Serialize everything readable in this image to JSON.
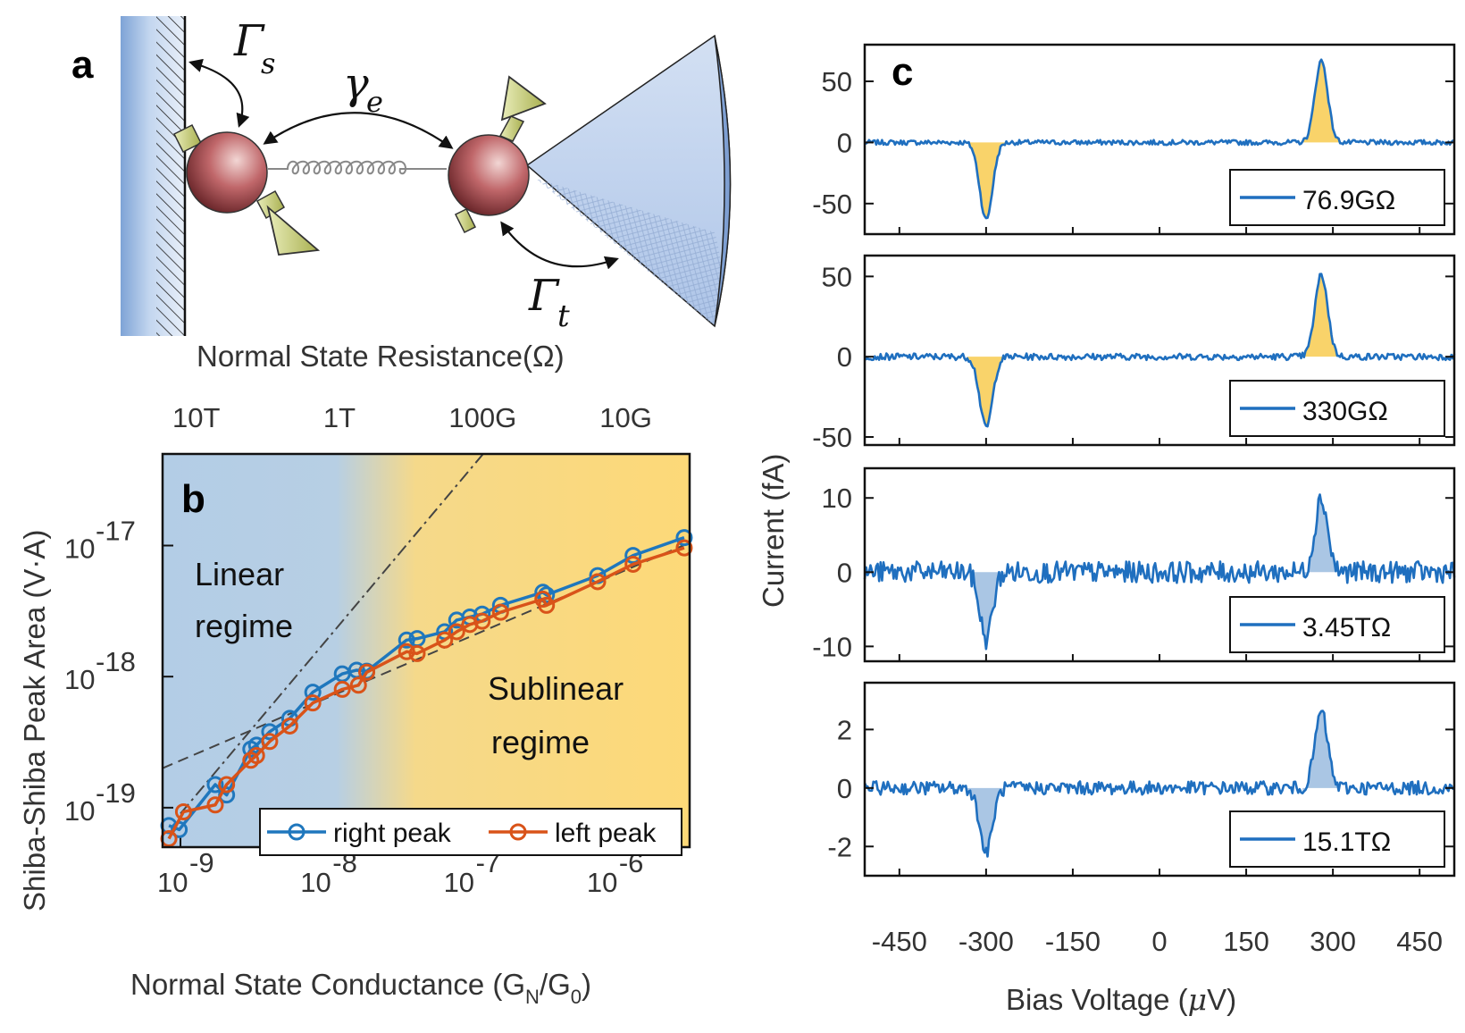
{
  "panel_a": {
    "letter": "a",
    "labels": {
      "gamma_s": "Γ",
      "gamma_s_sub": "s",
      "gamma_e": "γ",
      "gamma_e_sub": "e",
      "gamma_t": "Γ",
      "gamma_t_sub": "t"
    },
    "colors": {
      "substrate": "#a9c1e8",
      "tip": "#c9d8ef",
      "sphere": "#b5484c",
      "arrow": "#c8d27a"
    }
  },
  "chart_data": [
    {
      "id": "b",
      "type": "scatter",
      "panel_letter": "b",
      "xscale": "log",
      "yscale": "log",
      "xlim": [
        7.5e-10,
        3.6e-06
      ],
      "ylim": [
        5e-20,
        5e-17
      ],
      "xlabel": "Normal State Conductance (G",
      "xlabel_sub1": "N",
      "xlabel_mid": "/G",
      "xlabel_sub2": "0",
      "xlabel_end": ")",
      "ylabel": "Shiba-Shiba Peak Area (V·A)",
      "top_xlabel": "Normal State Resistance(Ω)",
      "x_ticks": [
        {
          "base": "10",
          "exp": "-9",
          "value": 1e-09
        },
        {
          "base": "10",
          "exp": "-8",
          "value": 1e-08
        },
        {
          "base": "10",
          "exp": "-7",
          "value": 1e-07
        },
        {
          "base": "10",
          "exp": "-6",
          "value": 1e-06
        }
      ],
      "y_ticks": [
        {
          "base": "10",
          "exp": "-19",
          "value": 1e-19
        },
        {
          "base": "10",
          "exp": "-18",
          "value": 1e-18
        },
        {
          "base": "10",
          "exp": "-17",
          "value": 1e-17
        }
      ],
      "top_ticks": [
        {
          "label": "10T",
          "conductance": 1.29e-09
        },
        {
          "label": "1T",
          "conductance": 1.29e-08
        },
        {
          "label": "100G",
          "conductance": 1.29e-07
        },
        {
          "label": "10G",
          "conductance": 1.29e-06
        }
      ],
      "regions": {
        "linear_label_1": "Linear",
        "linear_label_2": "regime",
        "sub_label_1": "Sublinear",
        "sub_label_2": "regime",
        "linear_color": "#b5cfe6",
        "sub_color": "#fbd97a"
      },
      "series": [
        {
          "name": "right peak",
          "color": "#1f77bd",
          "x": [
            8.3e-10,
            9.8e-10,
            1.75e-09,
            2.1e-09,
            3.1e-09,
            3.4e-09,
            4.2e-09,
            5.8e-09,
            8.4e-09,
            1.35e-08,
            1.7e-08,
            2e-08,
            3.8e-08,
            4.5e-08,
            7e-08,
            8.5e-08,
            1.05e-07,
            1.28e-07,
            1.72e-07,
            3.4e-07,
            3.6e-07,
            8.2e-07,
            1.45e-06,
            3.3e-06
          ],
          "y": [
            7.3e-20,
            6.8e-20,
            1.5e-19,
            1.25e-19,
            2.8e-19,
            3e-19,
            3.8e-19,
            4.8e-19,
            7.6e-19,
            1.05e-18,
            1.12e-18,
            1.1e-18,
            1.9e-18,
            1.95e-18,
            2.2e-18,
            2.7e-18,
            2.85e-18,
            3e-18,
            3.5e-18,
            4.4e-18,
            4.2e-18,
            5.9e-18,
            8.4e-18,
            1.15e-17
          ]
        },
        {
          "name": "left peak",
          "color": "#d95319",
          "x": [
            8.3e-10,
            1.05e-09,
            1.75e-09,
            2.1e-09,
            3.1e-09,
            3.4e-09,
            4.2e-09,
            5.8e-09,
            8.4e-09,
            1.35e-08,
            1.75e-08,
            2e-08,
            3.8e-08,
            4.5e-08,
            7e-08,
            8.5e-08,
            1.05e-07,
            1.28e-07,
            1.72e-07,
            3.4e-07,
            3.6e-07,
            8.2e-07,
            1.45e-06,
            3.3e-06
          ],
          "y": [
            5.8e-20,
            9.3e-20,
            1.05e-19,
            1.5e-19,
            2.3e-19,
            2.5e-19,
            3.2e-19,
            4.2e-19,
            6.3e-19,
            8e-19,
            8.6e-19,
            1.08e-18,
            1.55e-18,
            1.5e-18,
            1.9e-18,
            2.2e-18,
            2.5e-18,
            2.65e-18,
            3.1e-18,
            3.9e-18,
            3.5e-18,
            5.3e-18,
            7.2e-18,
            9.6e-18
          ]
        }
      ],
      "fit_lines": [
        {
          "style": "dashdot",
          "x": [
            1e-09,
            1.3e-07
          ],
          "y": [
            9e-20,
            5e-17
          ]
        },
        {
          "style": "dashed",
          "x": [
            7.5e-10,
            3.6e-06
          ],
          "y": [
            2e-19,
            1.05e-17
          ]
        }
      ],
      "legend": "bottom-right"
    },
    {
      "id": "c",
      "type": "line",
      "panel_letter": "c",
      "xlabel": "Bias Voltage (",
      "xlabel_mu": "μ",
      "xlabel_end": "V)",
      "ylabel": "Current (fA)",
      "xlim": [
        -510,
        510
      ],
      "x_ticks": [
        {
          "label": "-450",
          "value": -450
        },
        {
          "label": "-300",
          "value": -300
        },
        {
          "label": "-150",
          "value": -150
        },
        {
          "label": "0",
          "value": 0
        },
        {
          "label": "150",
          "value": 150
        },
        {
          "label": "300",
          "value": 300
        },
        {
          "label": "450",
          "value": 450
        }
      ],
      "line_color": "#1f6fbf",
      "subplots": [
        {
          "legend": "76.9GΩ",
          "ylim": [
            -75,
            80
          ],
          "y_ticks": [
            {
              "label": "50",
              "value": 50
            },
            {
              "label": "0",
              "value": 0
            },
            {
              "label": "-50",
              "value": -50
            }
          ],
          "peak_pos": 280,
          "peak_height": 67,
          "dip_pos": -300,
          "dip_height": -63,
          "noise": 0.6,
          "fill": "#f9d36a"
        },
        {
          "legend": "330GΩ",
          "ylim": [
            -55,
            63
          ],
          "y_ticks": [
            {
              "label": "50",
              "value": 50
            },
            {
              "label": "0",
              "value": 0
            },
            {
              "label": "-50",
              "value": -50
            }
          ],
          "peak_pos": 280,
          "peak_height": 51,
          "dip_pos": -300,
          "dip_height": -44,
          "noise": 0.8,
          "fill": "#f9d36a"
        },
        {
          "legend": "3.45TΩ",
          "ylim": [
            -12,
            14
          ],
          "y_ticks": [
            {
              "label": "10",
              "value": 10
            },
            {
              "label": "0",
              "value": 0
            },
            {
              "label": "-10",
              "value": -10
            }
          ],
          "peak_pos": 280,
          "peak_height": 10,
          "dip_pos": -300,
          "dip_height": -9,
          "noise": 0.9,
          "fill": "#aac6e4"
        },
        {
          "legend": "15.1TΩ",
          "ylim": [
            -3,
            3.6
          ],
          "y_ticks": [
            {
              "label": "2",
              "value": 2
            },
            {
              "label": "0",
              "value": 0
            },
            {
              "label": "-2",
              "value": -2
            }
          ],
          "peak_pos": 280,
          "peak_height": 2.6,
          "dip_pos": -300,
          "dip_height": -2.2,
          "noise": 0.55,
          "fill": "#aac6e4"
        }
      ]
    }
  ]
}
